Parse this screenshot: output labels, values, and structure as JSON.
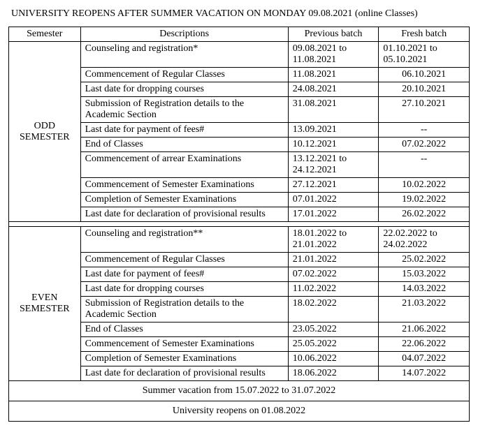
{
  "title": "UNIVERSITY REOPENS AFTER SUMMER VACATION ON MONDAY 09.08.2021 (online Classes)",
  "headers": {
    "semester": "Semester",
    "descriptions": "Descriptions",
    "previous": "Previous batch",
    "fresh": "Fresh batch"
  },
  "odd": {
    "label": "ODD SEMESTER",
    "rows": [
      {
        "desc": "Counseling and registration*",
        "prev": "09.08.2021 to 11.08.2021",
        "fresh": "01.10.2021 to 05.10.2021"
      },
      {
        "desc": "Commencement of Regular Classes",
        "prev": "11.08.2021",
        "fresh": "06.10.2021"
      },
      {
        "desc": "Last date for dropping courses",
        "prev": "24.08.2021",
        "fresh": "20.10.2021"
      },
      {
        "desc": "Submission of Registration details  to the Academic Section",
        "prev": "31.08.2021",
        "fresh": "27.10.2021"
      },
      {
        "desc": "Last date for payment of fees#",
        "prev": "13.09.2021",
        "fresh": "--"
      },
      {
        "desc": "End of Classes",
        "prev": "10.12.2021",
        "fresh": "07.02.2022"
      },
      {
        "desc": "Commencement of arrear Examinations",
        "prev": "13.12.2021 to 24.12.2021",
        "fresh": "--"
      },
      {
        "desc": "Commencement of Semester Examinations",
        "prev": "27.12.2021",
        "fresh": "10.02.2022"
      },
      {
        "desc": "Completion of  Semester Examinations",
        "prev": "07.01.2022",
        "fresh": "19.02.2022"
      },
      {
        "desc": "Last date for declaration of provisional results",
        "prev": "17.01.2022",
        "fresh": "26.02.2022"
      }
    ]
  },
  "even": {
    "label": "EVEN SEMESTER",
    "rows": [
      {
        "desc": "Counseling and registration**",
        "prev": "18.01.2022 to 21.01.2022",
        "fresh": "22.02.2022 to 24.02.2022"
      },
      {
        "desc": "Commencement of Regular Classes",
        "prev": "21.01.2022",
        "fresh": "25.02.2022"
      },
      {
        "desc": "Last date for payment of fees#",
        "prev": "07.02.2022",
        "fresh": "15.03.2022"
      },
      {
        "desc": "Last date for dropping courses",
        "prev": "11.02.2022",
        "fresh": "14.03.2022"
      },
      {
        "desc": "Submission of Registration details  to the Academic Section",
        "prev": "18.02.2022",
        "fresh": "21.03.2022"
      },
      {
        "desc": "End of Classes",
        "prev": "23.05.2022",
        "fresh": "21.06.2022"
      },
      {
        "desc": "Commencement of  Semester Examinations",
        "prev": "25.05.2022",
        "fresh": "22.06.2022"
      },
      {
        "desc": "Completion of  Semester Examinations",
        "prev": "10.06.2022",
        "fresh": "04.07.2022"
      },
      {
        "desc": "Last date for declaration of provisional results",
        "prev": "18.06.2022",
        "fresh": "14.07.2022"
      }
    ]
  },
  "footer": {
    "vacation": "Summer vacation  from 15.07.2022 to 31.07.2022",
    "reopen": "University reopens on 01.08.2022"
  }
}
